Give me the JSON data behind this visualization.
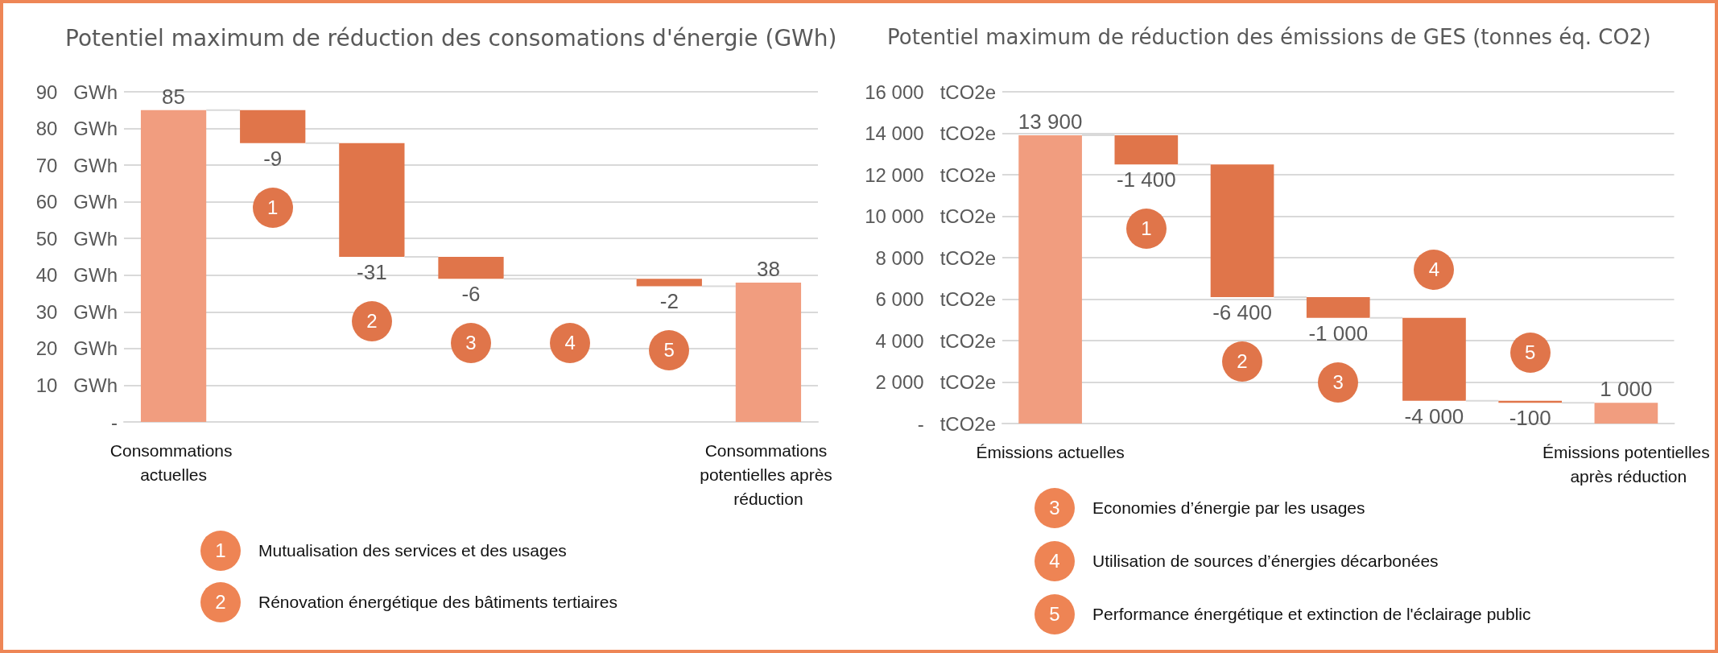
{
  "chart_data": [
    {
      "type": "bar",
      "title": "Potentiel maximum de réduction des consomations d'énergie (GWh)",
      "categories": [
        "Consommations actuelles",
        "1",
        "2",
        "3",
        "4",
        "5",
        "Consommations potentielles après réduction"
      ],
      "values": [
        85,
        -9,
        -31,
        -6,
        null,
        -2,
        38
      ],
      "base": [
        0,
        85,
        76,
        45,
        null,
        39,
        0
      ],
      "colors": [
        "#f19d7f",
        "#e0754a",
        "#e0754a",
        "#e0754a",
        "#e0754a",
        "#e0754a",
        "#f19d7f"
      ],
      "ylim": [
        0,
        90
      ],
      "yticks": [
        {
          "value": 0,
          "label": "-"
        },
        {
          "value": 10,
          "label": "10   GWh"
        },
        {
          "value": 20,
          "label": "20   GWh"
        },
        {
          "value": 30,
          "label": "30   GWh"
        },
        {
          "value": 40,
          "label": "40   GWh"
        },
        {
          "value": 50,
          "label": "50   GWh"
        },
        {
          "value": 60,
          "label": "60   GWh"
        },
        {
          "value": 70,
          "label": "70   GWh"
        },
        {
          "value": 80,
          "label": "80   GWh"
        },
        {
          "value": 90,
          "label": "90   GWh"
        }
      ],
      "grid": "y",
      "data_labels": true,
      "annotations": [
        "1",
        "Mutualisation des services et des usages",
        "2",
        "Rénovation énergétique des bâtiments tertiaires"
      ]
    },
    {
      "type": "bar",
      "title": "Potentiel maximum de réduction des émissions de GES (tonnes éq. CO2)",
      "categories": [
        "Émissions actuelles",
        "1",
        "2",
        "3",
        "4",
        "5",
        "Émissions potentielles après réduction"
      ],
      "values": [
        13900,
        -1400,
        -6400,
        -1000,
        -4000,
        -100,
        1000
      ],
      "base": [
        0,
        13900,
        12500,
        6100,
        5100,
        1100,
        0
      ],
      "colors": [
        "#f19d7f",
        "#e0754a",
        "#e0754a",
        "#e0754a",
        "#e0754a",
        "#e0754a",
        "#f19d7f"
      ],
      "ylim": [
        0,
        16000
      ],
      "ylabel": "tCO2e",
      "yticks": [
        {
          "value": 0,
          "label": "-"
        },
        {
          "value": 2000,
          "label": "2 000"
        },
        {
          "value": 4000,
          "label": "4 000"
        },
        {
          "value": 6000,
          "label": "6 000"
        },
        {
          "value": 8000,
          "label": "8 000"
        },
        {
          "value": 10000,
          "label": "10 000"
        },
        {
          "value": 12000,
          "label": "12 000"
        },
        {
          "value": 14000,
          "label": "14 000"
        },
        {
          "value": 16000,
          "label": "16 000"
        }
      ],
      "grid": "y",
      "data_labels": true,
      "annotations": [
        "3",
        "Economies d’énergie par les usages",
        "4",
        "Utilisation de sources d’énergies décarbonées",
        "5",
        "Performance énergétique et extinction de l'éclairage public"
      ]
    }
  ]
}
